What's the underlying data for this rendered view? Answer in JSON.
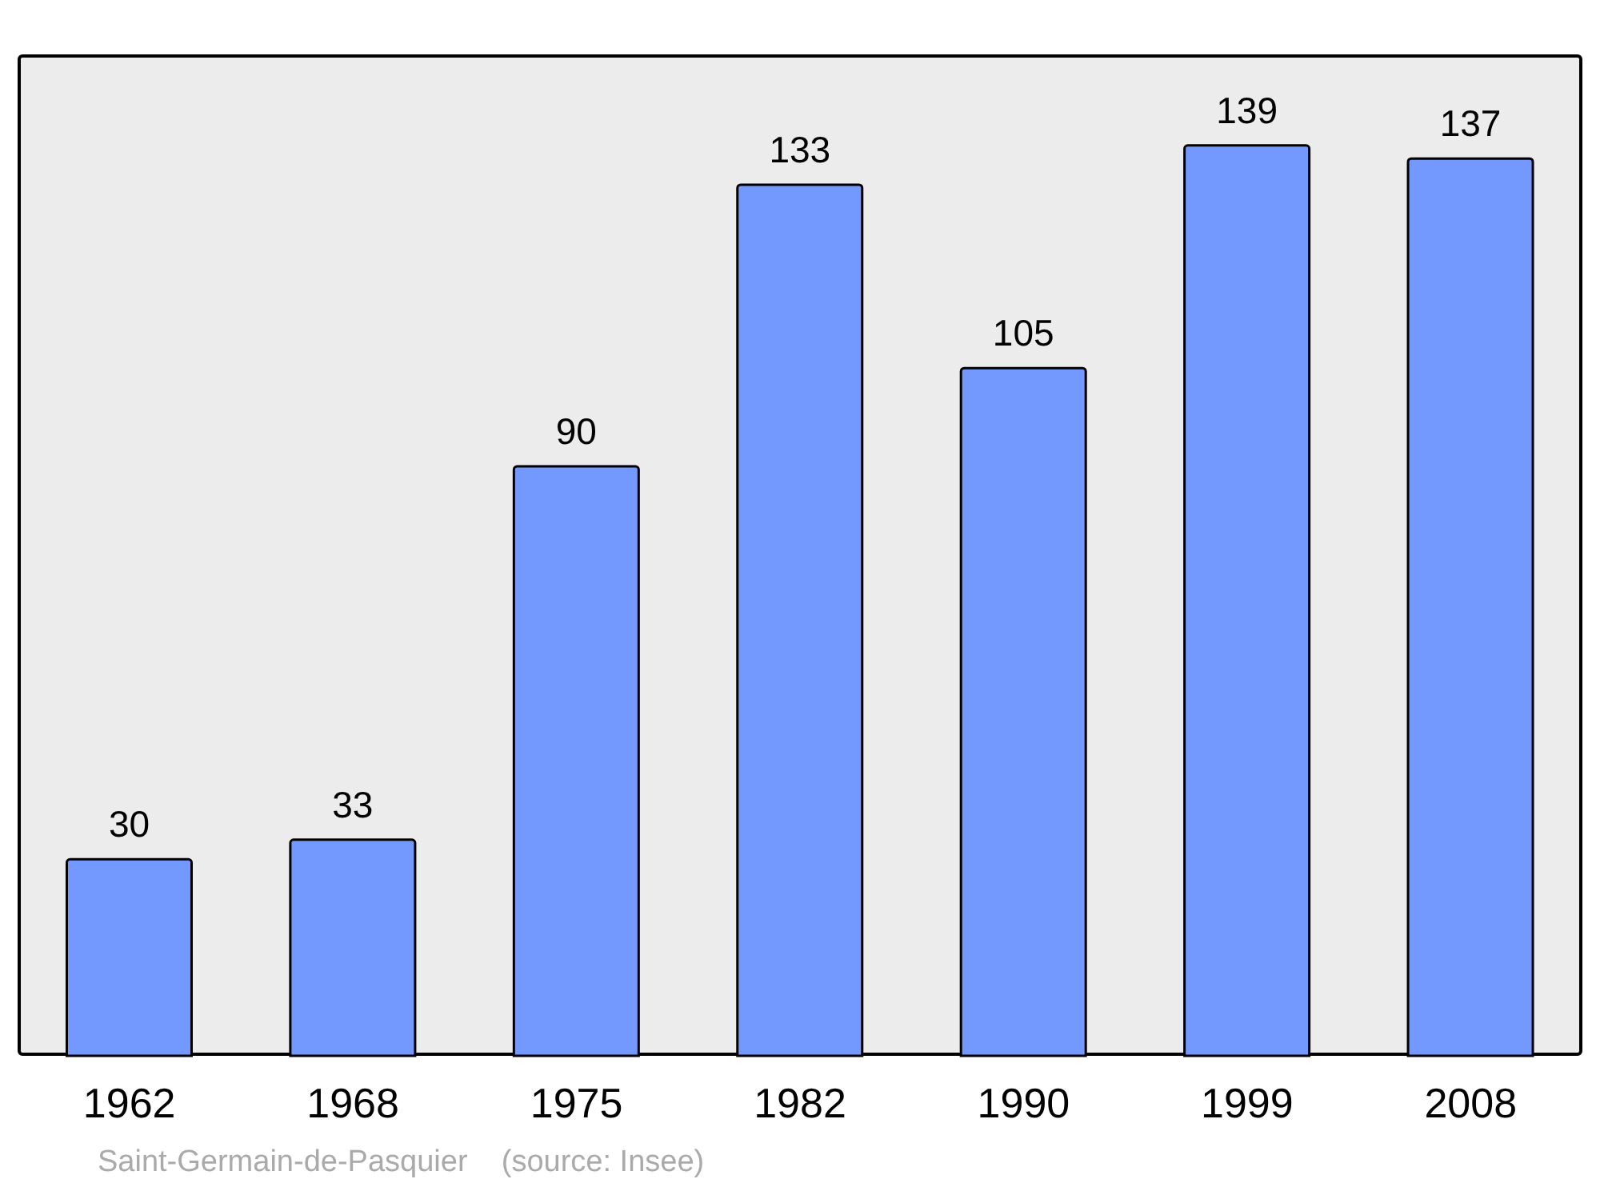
{
  "chart_data": {
    "type": "bar",
    "categories": [
      "1962",
      "1968",
      "1975",
      "1982",
      "1990",
      "1999",
      "2008"
    ],
    "values": [
      30,
      33,
      90,
      133,
      105,
      139,
      137
    ],
    "color": "#7399ff",
    "data_labels": true,
    "grid": false,
    "legend": false,
    "annotations": [
      "Saint-Germain-de-Pasquier    (source: Insee)"
    ]
  }
}
